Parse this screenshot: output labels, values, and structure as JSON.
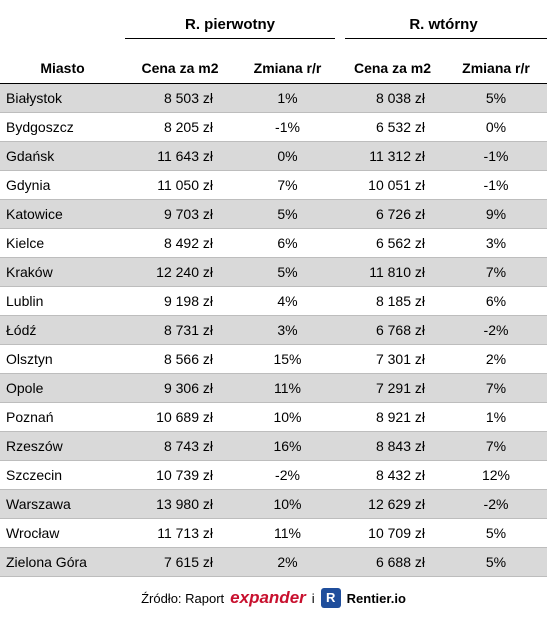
{
  "table": {
    "group_headers": [
      "R. pierwotny",
      "R. wtórny"
    ],
    "columns": [
      "Miasto",
      "Cena za m2",
      "Zmiana r/r",
      "Cena za m2",
      "Zmiana r/r"
    ],
    "rows": [
      [
        "Białystok",
        "8 503 zł",
        "1%",
        "8 038 zł",
        "5%"
      ],
      [
        "Bydgoszcz",
        "8 205 zł",
        "-1%",
        "6 532 zł",
        "0%"
      ],
      [
        "Gdańsk",
        "11 643 zł",
        "0%",
        "11 312 zł",
        "-1%"
      ],
      [
        "Gdynia",
        "11 050 zł",
        "7%",
        "10 051 zł",
        "-1%"
      ],
      [
        "Katowice",
        "9 703 zł",
        "5%",
        "6 726 zł",
        "9%"
      ],
      [
        "Kielce",
        "8 492 zł",
        "6%",
        "6 562 zł",
        "3%"
      ],
      [
        "Kraków",
        "12 240 zł",
        "5%",
        "11 810 zł",
        "7%"
      ],
      [
        "Lublin",
        "9 198 zł",
        "4%",
        "8 185 zł",
        "6%"
      ],
      [
        "Łódź",
        "8 731 zł",
        "3%",
        "6 768 zł",
        "-2%"
      ],
      [
        "Olsztyn",
        "8 566 zł",
        "15%",
        "7 301 zł",
        "2%"
      ],
      [
        "Opole",
        "9 306 zł",
        "11%",
        "7 291 zł",
        "7%"
      ],
      [
        "Poznań",
        "10 689 zł",
        "10%",
        "8 921 zł",
        "1%"
      ],
      [
        "Rzeszów",
        "8 743 zł",
        "16%",
        "8 843 zł",
        "7%"
      ],
      [
        "Szczecin",
        "10 739 zł",
        "-2%",
        "8 432 zł",
        "12%"
      ],
      [
        "Warszawa",
        "13 980 zł",
        "10%",
        "12 629 zł",
        "-2%"
      ],
      [
        "Wrocław",
        "11 713 zł",
        "11%",
        "10 709 zł",
        "5%"
      ],
      [
        "Zielona Góra",
        "7 615 zł",
        "2%",
        "6 688 zł",
        "5%"
      ]
    ]
  },
  "footer": {
    "source_label": "Źródło: Raport",
    "logo1": "expander",
    "separator": "i",
    "logo2_icon": "R",
    "logo2": "Rentier.io"
  }
}
